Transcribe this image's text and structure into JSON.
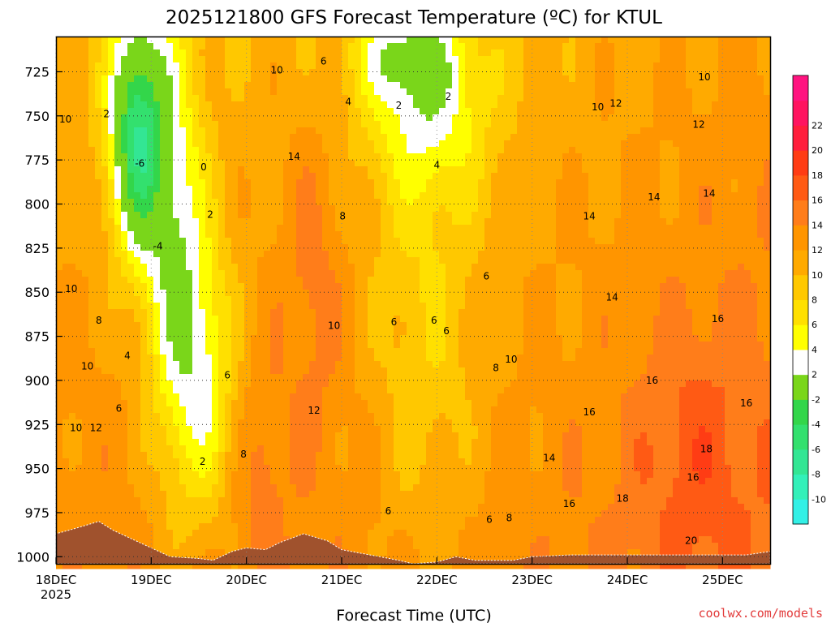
{
  "chart_data": {
    "type": "heatmap",
    "title": "2025121800 GFS Forecast Temperature (ºC) for KTUL",
    "xlabel": "Forecast Time (UTC)",
    "ylabel": "",
    "credit": "coolwx.com/models",
    "x_ticks": [
      "18DEC",
      "19DEC",
      "20DEC",
      "21DEC",
      "22DEC",
      "23DEC",
      "24DEC",
      "25DEC"
    ],
    "x_year": "2025",
    "y_ticks": [
      725,
      750,
      775,
      800,
      825,
      850,
      875,
      900,
      925,
      950,
      975,
      1000
    ],
    "ylim": [
      1004,
      705
    ],
    "xlim": [
      0,
      7.5
    ],
    "colorbar": {
      "levels": [
        -12,
        -10,
        -8,
        -6,
        -4,
        -2,
        2,
        4,
        6,
        8,
        10,
        12,
        14,
        16,
        18,
        20,
        22,
        24
      ],
      "labels": [
        "-10",
        "-8",
        "-6",
        "-4",
        "-2",
        "2",
        "4",
        "6",
        "8",
        "10",
        "12",
        "14",
        "16",
        "18",
        "20",
        "22"
      ],
      "colors": [
        "#33f0e6",
        "#33f0b9",
        "#33e694",
        "#33e06e",
        "#33d64a",
        "#7ad61a",
        "#ffffff",
        "#ffff00",
        "#ffe000",
        "#ffc800",
        "#ffaa00",
        "#ff9500",
        "#ff7d1a",
        "#ff5a14",
        "#ff3c14",
        "#ff1e3c",
        "#ff1460",
        "#ff1480"
      ]
    },
    "contour_labels": [
      {
        "x": 0.1,
        "p": 752,
        "t": "10"
      },
      {
        "x": 0.53,
        "p": 749,
        "t": "2"
      },
      {
        "x": 0.88,
        "p": 777,
        "t": "-6"
      },
      {
        "x": 1.07,
        "p": 824,
        "t": "-4"
      },
      {
        "x": 1.55,
        "p": 779,
        "t": "0"
      },
      {
        "x": 1.62,
        "p": 806,
        "t": "2"
      },
      {
        "x": 2.32,
        "p": 724,
        "t": "10"
      },
      {
        "x": 2.81,
        "p": 719,
        "t": "6"
      },
      {
        "x": 3.07,
        "p": 742,
        "t": "4"
      },
      {
        "x": 2.5,
        "p": 773,
        "t": "14"
      },
      {
        "x": 3.01,
        "p": 807,
        "t": "8"
      },
      {
        "x": 3.6,
        "p": 744,
        "t": "2"
      },
      {
        "x": 4.12,
        "p": 739,
        "t": "2"
      },
      {
        "x": 4.0,
        "p": 778,
        "t": "4"
      },
      {
        "x": 0.16,
        "p": 848,
        "t": "10"
      },
      {
        "x": 0.45,
        "p": 866,
        "t": "8"
      },
      {
        "x": 0.75,
        "p": 886,
        "t": "4"
      },
      {
        "x": 0.33,
        "p": 892,
        "t": "10"
      },
      {
        "x": 0.66,
        "p": 916,
        "t": "6"
      },
      {
        "x": 0.21,
        "p": 927,
        "t": "10"
      },
      {
        "x": 0.42,
        "p": 927,
        "t": "12"
      },
      {
        "x": 1.8,
        "p": 897,
        "t": "6"
      },
      {
        "x": 1.54,
        "p": 946,
        "t": "2"
      },
      {
        "x": 1.97,
        "p": 942,
        "t": "8"
      },
      {
        "x": 2.92,
        "p": 869,
        "t": "10"
      },
      {
        "x": 2.71,
        "p": 917,
        "t": "12"
      },
      {
        "x": 3.55,
        "p": 867,
        "t": "6"
      },
      {
        "x": 3.97,
        "p": 866,
        "t": "6"
      },
      {
        "x": 4.1,
        "p": 872,
        "t": "6"
      },
      {
        "x": 4.52,
        "p": 841,
        "t": "6"
      },
      {
        "x": 4.62,
        "p": 893,
        "t": "8"
      },
      {
        "x": 4.78,
        "p": 888,
        "t": "10"
      },
      {
        "x": 3.49,
        "p": 974,
        "t": "6"
      },
      {
        "x": 4.55,
        "p": 979,
        "t": "6"
      },
      {
        "x": 4.76,
        "p": 978,
        "t": "8"
      },
      {
        "x": 5.18,
        "p": 944,
        "t": "14"
      },
      {
        "x": 5.39,
        "p": 970,
        "t": "16"
      },
      {
        "x": 5.6,
        "p": 918,
        "t": "16"
      },
      {
        "x": 5.69,
        "p": 745,
        "t": "10"
      },
      {
        "x": 5.88,
        "p": 743,
        "t": "12"
      },
      {
        "x": 5.6,
        "p": 807,
        "t": "14"
      },
      {
        "x": 6.28,
        "p": 796,
        "t": "14"
      },
      {
        "x": 5.84,
        "p": 853,
        "t": "14"
      },
      {
        "x": 6.26,
        "p": 900,
        "t": "16"
      },
      {
        "x": 5.95,
        "p": 967,
        "t": "18"
      },
      {
        "x": 6.81,
        "p": 728,
        "t": "10"
      },
      {
        "x": 6.75,
        "p": 755,
        "t": "12"
      },
      {
        "x": 6.86,
        "p": 794,
        "t": "14"
      },
      {
        "x": 6.95,
        "p": 865,
        "t": "16"
      },
      {
        "x": 7.25,
        "p": 913,
        "t": "16"
      },
      {
        "x": 6.83,
        "p": 939,
        "t": "18"
      },
      {
        "x": 6.69,
        "p": 955,
        "t": "16"
      },
      {
        "x": 6.67,
        "p": 991,
        "t": "20"
      }
    ]
  }
}
